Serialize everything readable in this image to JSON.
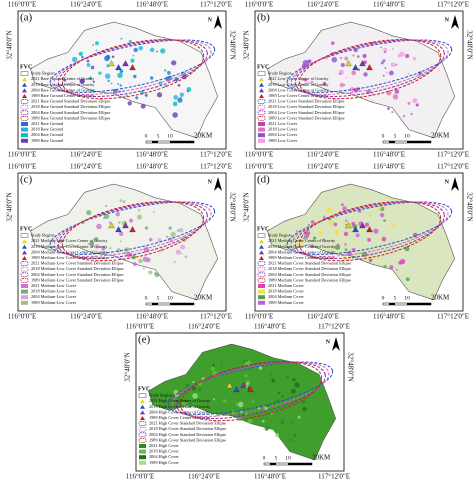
{
  "lon_labels": [
    "116°0'0\"E",
    "116°24'0\"E",
    "116°48'0\"E",
    "117°12'0\"E"
  ],
  "lat_label": "32°48'0\"N",
  "north": "N",
  "scale_labels": [
    "0",
    "5",
    "10",
    "20KM"
  ],
  "legend_title": "FVC",
  "study_region": "Study Region",
  "panels": [
    {
      "label": "(a)",
      "legend": [
        "2021 Bare Ground Center of Gravity",
        "2018 Bare Ground Center of Gravity",
        "2004 Bare Ground Center of Gravity",
        "1989 Bare Ground Center of Gravity",
        "2021 Bare Ground Standard Deviation Ellipse",
        "2018 Bare Ground Standard Deviation Ellipse",
        "2004 Bare Ground Standard Deviation Ellipse",
        "1989 Bare Ground Standard Deviation Ellipse",
        "2021 Bare Ground",
        "2018 Bare Ground",
        "2004 Bare Ground",
        "1989 Bare Ground"
      ]
    },
    {
      "label": "(b)",
      "legend": [
        "2021 Low Cover Center of Gravity",
        "2018 Low Cover Center of Gravity",
        "2004 Low Cover Center of Gravity",
        "1989 Low Cover Center of Gravity",
        "2021 Low Cover Standard Deviation Ellipse",
        "2018 Low Cover Standard Deviation Ellipse",
        "2004 Low Cover Standard Deviation Ellipse",
        "1989 Low Cover Standard Deviation Ellipse",
        "2021 Low Cover",
        "2018 Low Cover",
        "2004 Low Cover",
        "1989 Low Cover"
      ]
    },
    {
      "label": "(c)",
      "legend": [
        "2021 Medium-Low Cover Center of Gravity",
        "2018 Medium-Low Cover Center of Gravity",
        "2004 Medium-Low Cover Center of Gravity",
        "1989 Medium-Low Cover Center of Gravity",
        "2021 Medium-Low Cover Standard Deviation Ellipse",
        "2018 Medium-Low Cover Standard Deviation Ellipse",
        "2004 Medium-Low Cover Standard Deviation Ellipse",
        "1989 Medium-Low Cover Standard Deviation Ellipse",
        "2021 Medium-Low Cover",
        "2018 Medium-Low Cover",
        "2004 Medium-Low Cover",
        "1989 Medium-Low Cover"
      ]
    },
    {
      "label": "(d)",
      "legend": [
        "2021 Medium Cover Center of Gravity",
        "2018 Medium Cover Center of Gravity",
        "2004 Medium Cover Center of Gravity",
        "1989 Medium Cover Center of Gravity",
        "2021 Medium Cover Standard Deviation Ellipse",
        "2018 Medium Cover Standard Deviation Ellipse",
        "2004 Medium Cover Standard Deviation Ellipse",
        "1989 Medium Cover Standard Deviation Ellipse",
        "2021 Medium Cover",
        "2018 Medium Cover",
        "2004 Medium Cover",
        "1989 Medium Cover"
      ]
    },
    {
      "label": "(e)",
      "legend": [
        "2021 High Cover Center of Gravity",
        "2018 High Cover Center of Gravity",
        "2004 High Cover Center of Gravity",
        "1989 High Cover Center of Gravity",
        "2021 High Cover Standard Deviation Ellipse",
        "2018 High Cover Standard Deviation Ellipse",
        "2004 High Cover Standard Deviation Ellipse",
        "1989 High Cover Standard Deviation Ellipse",
        "2021 High Cover",
        "2018 High Cover",
        "2004 High Cover",
        "1989 High Cover"
      ]
    }
  ]
}
